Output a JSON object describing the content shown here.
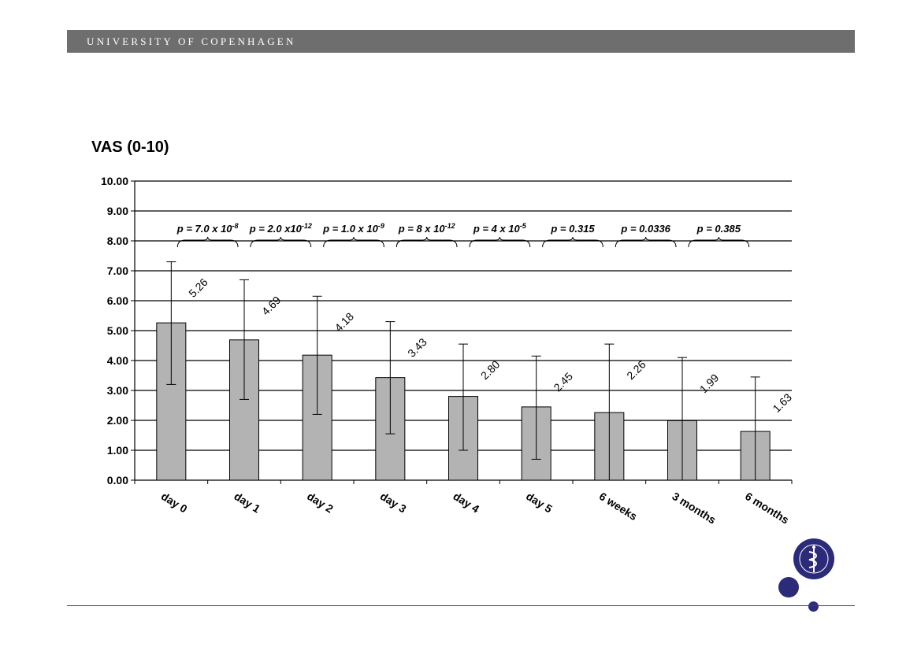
{
  "header": {
    "title": "UNIVERSITY OF COPENHAGEN"
  },
  "logo": {
    "name": "university-seal",
    "color": "#2b2b7a"
  },
  "colors": {
    "header_bar": "#6e6e6e",
    "bar_fill": "#b3b3b3",
    "accent": "#2b2b7a"
  },
  "chart_data": {
    "type": "bar",
    "title": "VAS (0-10)",
    "xlabel": "",
    "ylabel": "",
    "ylim": [
      0,
      10
    ],
    "yticks": [
      "0.00",
      "1.00",
      "2.00",
      "3.00",
      "4.00",
      "5.00",
      "6.00",
      "7.00",
      "8.00",
      "9.00",
      "10.00"
    ],
    "grid": true,
    "categories": [
      "day 0",
      "day 1",
      "day 2",
      "day 3",
      "day 4",
      "day 5",
      "6 weeks",
      "3 months",
      "6 months"
    ],
    "values": [
      5.26,
      4.69,
      4.18,
      3.43,
      2.8,
      2.45,
      2.26,
      1.99,
      1.63
    ],
    "value_labels": [
      "5.26",
      "4.69",
      "4.18",
      "3.43",
      "2.80",
      "2.45",
      "2.26",
      "1.99",
      "1.63"
    ],
    "error_upper": [
      7.3,
      6.7,
      6.15,
      5.3,
      4.55,
      4.15,
      4.55,
      4.1,
      3.45
    ],
    "error_lower": [
      3.2,
      2.7,
      2.2,
      1.55,
      1.0,
      0.7,
      0.0,
      0.0,
      0.0
    ],
    "p_values": [
      {
        "base": "p = 7.0 x 10",
        "exp": "-8"
      },
      {
        "base": "p = 2.0 x10",
        "exp": "-12"
      },
      {
        "base": "p = 1.0 x 10",
        "exp": "-9"
      },
      {
        "base": "p = 8 x 10",
        "exp": "-12"
      },
      {
        "base": "p = 4 x 10",
        "exp": "-5"
      },
      {
        "base": "p = 0.315",
        "exp": ""
      },
      {
        "base": "p = 0.0336",
        "exp": ""
      },
      {
        "base": "p = 0.385",
        "exp": ""
      }
    ]
  }
}
